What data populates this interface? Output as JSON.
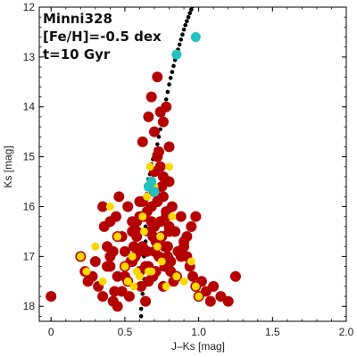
{
  "chart_data": {
    "type": "scatter",
    "title": "",
    "annotations": [
      "Minni328",
      "[Fe/H]=-0.5 dex",
      "t=10 Gyr"
    ],
    "xlabel": "J–Ks [mag]",
    "ylabel": "Ks [mag]",
    "xlim": [
      -0.08,
      2.0
    ],
    "ylim": [
      18.3,
      12.0
    ],
    "y_inverted": true,
    "xticks": [
      0,
      0.5,
      1.0,
      1.5,
      2.0
    ],
    "xtick_labels": [
      "0",
      "0.5",
      "1.0",
      "1.5",
      "2.0"
    ],
    "yticks": [
      12,
      13,
      14,
      15,
      16,
      17,
      18
    ],
    "ytick_labels": [
      "12",
      "13",
      "14",
      "15",
      "16",
      "17",
      "18"
    ],
    "grid": false,
    "legend": "none",
    "colors": {
      "red_points": "#b50000",
      "yellow_points": "#ffd700",
      "cyan_points": "#22c0c0",
      "isochrone": "#000000"
    },
    "series": [
      {
        "style": "isochrone",
        "x": [
          0.6,
          0.61,
          0.61,
          0.62,
          0.62,
          0.62,
          0.63,
          0.63,
          0.63,
          0.63,
          0.63,
          0.64,
          0.64,
          0.64,
          0.64,
          0.64,
          0.64,
          0.65,
          0.65,
          0.65,
          0.66,
          0.66,
          0.67,
          0.68,
          0.68,
          0.69,
          0.7,
          0.71,
          0.72,
          0.73,
          0.74,
          0.75,
          0.76,
          0.77,
          0.78,
          0.79,
          0.8,
          0.81,
          0.82,
          0.83,
          0.84,
          0.85,
          0.86,
          0.87,
          0.88,
          0.89,
          0.9,
          0.91,
          0.92,
          0.93,
          0.94,
          0.95,
          0.96,
          0.97,
          0.98,
          0.99,
          1.0,
          1.01,
          1.02,
          1.03
        ],
        "y": [
          18.35,
          18.2,
          18.05,
          17.9,
          17.75,
          17.6,
          17.45,
          17.3,
          17.15,
          17.0,
          16.85,
          16.7,
          16.55,
          16.4,
          16.25,
          16.1,
          15.95,
          15.85,
          15.75,
          15.65,
          15.55,
          15.45,
          15.35,
          15.25,
          15.15,
          15.05,
          14.95,
          14.85,
          14.75,
          14.6,
          14.45,
          14.3,
          14.15,
          14.0,
          13.85,
          13.7,
          13.55,
          13.42,
          13.3,
          13.18,
          13.06,
          12.95,
          12.85,
          12.75,
          12.65,
          12.55,
          12.45,
          12.36,
          12.28,
          12.2,
          12.12,
          12.05,
          11.98,
          11.92,
          11.86,
          11.8,
          11.74,
          11.68,
          11.62,
          11.56
        ]
      },
      {
        "style": "red",
        "x": [
          0.0,
          0.2,
          0.23,
          0.28,
          0.3,
          0.25,
          0.32,
          0.35,
          0.38,
          0.4,
          0.42,
          0.45,
          0.43,
          0.48,
          0.5,
          0.52,
          0.55,
          0.53,
          0.57,
          0.58,
          0.6,
          0.62,
          0.61,
          0.63,
          0.65,
          0.64,
          0.67,
          0.66,
          0.68,
          0.7,
          0.69,
          0.71,
          0.72,
          0.74,
          0.73,
          0.75,
          0.76,
          0.78,
          0.77,
          0.79,
          0.8,
          0.82,
          0.81,
          0.84,
          0.86,
          0.85,
          0.88,
          0.9,
          0.92,
          0.94,
          0.96,
          0.98,
          1.0,
          1.02,
          1.05,
          1.08,
          1.1,
          1.15,
          1.2,
          1.25,
          0.35,
          0.4,
          0.45,
          0.5,
          0.55,
          0.6,
          0.65,
          0.7,
          0.75,
          0.8,
          0.62,
          0.66,
          0.68,
          0.72,
          0.74,
          0.7,
          0.73,
          0.76,
          0.78,
          0.72,
          0.74,
          0.76,
          0.7,
          0.72,
          0.78,
          0.8,
          0.75,
          0.77,
          0.79,
          0.81,
          0.83,
          0.68,
          0.69,
          0.7,
          0.71,
          0.76,
          0.78,
          0.8,
          0.62,
          0.6,
          0.58,
          0.56,
          0.54,
          0.5,
          0.48,
          0.45,
          0.42,
          0.4,
          0.38,
          0.36,
          0.44,
          0.46,
          0.52,
          0.55,
          0.58,
          0.6,
          0.64,
          0.66,
          0.85,
          0.88,
          0.9,
          0.92,
          0.95,
          0.98
        ],
        "y": [
          17.8,
          17.0,
          17.3,
          17.4,
          17.1,
          17.5,
          17.6,
          17.8,
          17.2,
          17.0,
          16.9,
          17.4,
          17.7,
          16.6,
          17.2,
          17.5,
          16.5,
          17.8,
          17.0,
          16.3,
          17.3,
          16.8,
          17.6,
          16.2,
          16.9,
          17.9,
          16.5,
          17.2,
          16.0,
          16.4,
          17.4,
          16.7,
          15.9,
          16.3,
          17.0,
          16.6,
          15.8,
          16.2,
          17.2,
          16.8,
          15.5,
          16.0,
          17.1,
          16.5,
          16.9,
          17.4,
          16.2,
          16.7,
          17.0,
          17.2,
          17.4,
          17.6,
          17.8,
          17.5,
          17.7,
          17.9,
          17.6,
          17.8,
          17.9,
          17.4,
          16.0,
          16.3,
          16.6,
          16.9,
          17.1,
          15.9,
          16.1,
          15.3,
          15.6,
          14.8,
          14.7,
          14.2,
          13.8,
          13.4,
          14.1,
          14.5,
          14.9,
          14.3,
          14.0,
          15.0,
          15.2,
          15.4,
          15.7,
          15.9,
          16.1,
          16.4,
          16.6,
          16.8,
          17.0,
          17.3,
          17.5,
          16.3,
          16.6,
          16.9,
          17.3,
          17.6,
          17.2,
          16.5,
          15.9,
          16.2,
          16.5,
          16.8,
          17.1,
          17.4,
          17.7,
          18.0,
          17.9,
          17.2,
          16.8,
          16.4,
          16.2,
          15.8,
          16.0,
          16.3,
          16.6,
          16.9,
          17.2,
          17.5,
          17.4,
          17.0,
          16.8,
          16.6,
          16.4,
          16.2
        ],
        "size": "large"
      },
      {
        "style": "yellow",
        "x": [
          0.2,
          0.24,
          0.3,
          0.35,
          0.4,
          0.45,
          0.5,
          0.52,
          0.55,
          0.6,
          0.62,
          0.63,
          0.65,
          0.66,
          0.67,
          0.7,
          0.72,
          0.75,
          0.78,
          0.8,
          0.82,
          0.85,
          0.9,
          0.95,
          0.98,
          1.0,
          0.58,
          0.68,
          0.74,
          0.56
        ],
        "y": [
          17.0,
          17.3,
          16.8,
          17.5,
          16.0,
          16.6,
          17.2,
          17.5,
          17.0,
          17.4,
          16.2,
          16.5,
          15.8,
          17.3,
          15.2,
          15.6,
          16.8,
          17.1,
          17.6,
          15.2,
          16.2,
          17.4,
          17.5,
          17.1,
          17.6,
          17.8,
          17.3,
          17.3,
          16.6,
          17.6
        ],
        "size": "medium"
      },
      {
        "style": "cyan",
        "x": [
          0.85,
          0.98,
          0.66,
          0.68,
          0.7
        ],
        "y": [
          12.95,
          12.6,
          15.6,
          15.5,
          15.7
        ],
        "size": "medium"
      }
    ]
  }
}
